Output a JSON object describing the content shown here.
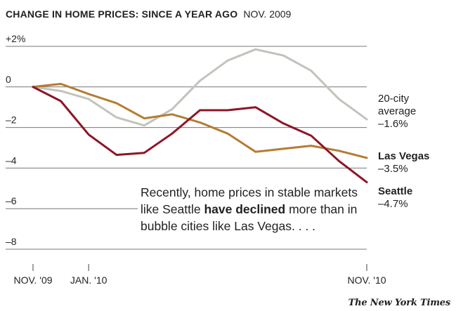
{
  "header": {
    "title": "CHANGE IN HOME PRICES: SINCE A YEAR AGO",
    "date": "NOV. 2009"
  },
  "annotation": {
    "part1": "Recently, home prices in stable markets like Seattle ",
    "bold1": "have",
    "bold2": "declined",
    "part2": " more than in bubble cities like Las Vegas. . . ."
  },
  "labels": {
    "avg_name_1": "20-city",
    "avg_name_2": "average",
    "avg_value": "–1.6%",
    "lv_name": "Las Vegas",
    "lv_value": "–3.5%",
    "sea_name": "Seattle",
    "sea_value": "–4.7%"
  },
  "source": "The New York Times",
  "colors": {
    "average": "#c3c3bd",
    "las_vegas": "#b47c33",
    "seattle": "#8c1528",
    "grid": "#777777"
  },
  "chart_data": {
    "type": "line",
    "title": "CHANGE IN HOME PRICES: SINCE A YEAR AGO",
    "subtitle": "NOV. 2009",
    "x": [
      "2009-11",
      "2009-12",
      "2010-01",
      "2010-02",
      "2010-03",
      "2010-04",
      "2010-05",
      "2010-06",
      "2010-07",
      "2010-08",
      "2010-09",
      "2010-10",
      "2010-11"
    ],
    "x_tick_labels": [
      {
        "x": "2009-11",
        "label": "NOV. '09"
      },
      {
        "x": "2010-01",
        "label": "JAN. '10"
      },
      {
        "x": "2010-11",
        "label": "NOV. '10"
      }
    ],
    "y_tick_labels": [
      {
        "y": 2,
        "label": "+2%"
      },
      {
        "y": 0,
        "label": "0"
      },
      {
        "y": -2,
        "label": "–2"
      },
      {
        "y": -4,
        "label": "–4"
      },
      {
        "y": -6,
        "label": "–6"
      },
      {
        "y": -8,
        "label": "–8"
      }
    ],
    "ylim": [
      -8,
      2
    ],
    "grid": true,
    "series": [
      {
        "name": "20-city average",
        "color": "#c3c3bd",
        "values": [
          0,
          -0.2,
          -0.6,
          -1.5,
          -1.9,
          -1.1,
          0.3,
          1.3,
          1.85,
          1.55,
          0.8,
          -0.6,
          -1.6
        ]
      },
      {
        "name": "Las Vegas",
        "color": "#b47c33",
        "values": [
          0,
          0.15,
          -0.35,
          -0.8,
          -1.55,
          -1.35,
          -1.75,
          -2.3,
          -3.2,
          -3.05,
          -2.9,
          -3.15,
          -3.5
        ]
      },
      {
        "name": "Seattle",
        "color": "#8c1528",
        "values": [
          0,
          -0.7,
          -2.35,
          -3.35,
          -3.25,
          -2.3,
          -1.15,
          -1.15,
          -1.0,
          -1.8,
          -2.4,
          -3.65,
          -4.7
        ]
      }
    ]
  }
}
